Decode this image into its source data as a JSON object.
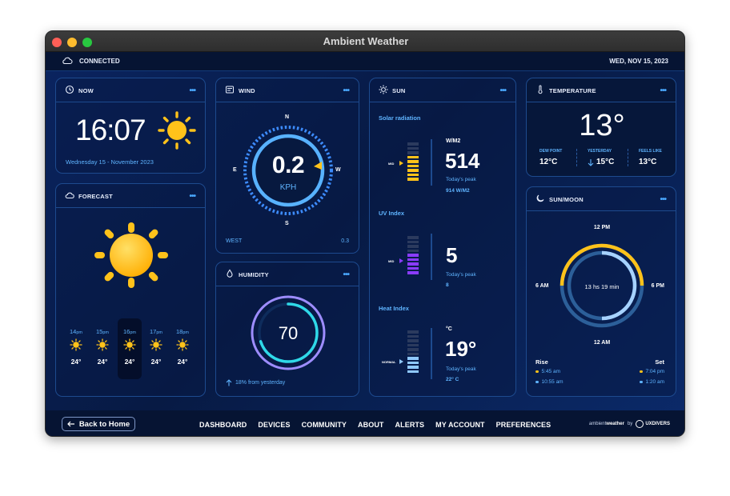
{
  "window": {
    "title": "Ambient Weather"
  },
  "status": {
    "connection": "CONNECTED",
    "date": "WED, NOV 15, 2023"
  },
  "now": {
    "title": "NOW",
    "time": "16:07",
    "date": "Wednesday 15 - November 2023"
  },
  "forecast": {
    "title": "FORECAST",
    "hours": [
      {
        "hour": "14",
        "suffix": "pm",
        "temp": "24°"
      },
      {
        "hour": "15",
        "suffix": "pm",
        "temp": "24°"
      },
      {
        "hour": "16",
        "suffix": "pm",
        "temp": "24°"
      },
      {
        "hour": "17",
        "suffix": "pm",
        "temp": "24°"
      },
      {
        "hour": "18",
        "suffix": "pm",
        "temp": "24°"
      }
    ]
  },
  "wind": {
    "title": "WIND",
    "speed": "0.2",
    "unit": "KPH",
    "compass": {
      "n": "N",
      "e": "E",
      "s": "S",
      "w": "W"
    },
    "direction": "WEST",
    "value": "0.3"
  },
  "humidity": {
    "title": "HUMIDITY",
    "value": "70",
    "level": 0.7,
    "change": "18% from yesterday"
  },
  "sun": {
    "title": "SUN",
    "solar": {
      "label": "Solar radiation",
      "unit": "W/M2",
      "value": "514",
      "peak_label": "Today's peak",
      "peak": "914 W/M2",
      "marker": "MID"
    },
    "uv": {
      "label": "UV Index",
      "value": "5",
      "peak_label": "Today's peak",
      "peak": "8",
      "marker": "MID"
    },
    "heat": {
      "label": "Heat Index",
      "unit": "°C",
      "value": "19°",
      "peak_label": "Today's peak",
      "peak": "22° C",
      "marker": "NORMAL"
    }
  },
  "temperature": {
    "title": "TEMPERATURE",
    "value": "13°",
    "dew_label": "DEW POINT",
    "dew": "12°C",
    "yesterday_label": "YESTERDAY",
    "yesterday": "15°C",
    "feels_label": "FEELS LIKE",
    "feels": "13°C"
  },
  "sunmoon": {
    "title": "SUN/MOON",
    "top": "12 PM",
    "left": "6 AM",
    "right": "6 PM",
    "bottom": "12 AM",
    "center": "13 hs 19 min",
    "rise_label": "Rise",
    "set_label": "Set",
    "rise_sun": "5:45 am",
    "rise_moon": "10:55 am",
    "set_sun": "7:04 pm",
    "set_moon": "1:20 am"
  },
  "nav": {
    "back": "Back to Home",
    "links": [
      "DASHBOARD",
      "DEVICES",
      "COMMUNITY",
      "ABOUT",
      "ALERTS",
      "MY ACCOUNT",
      "PREFERENCES"
    ],
    "brand_prefix": "ambient",
    "brand_suffix": "weather",
    "brand_by": "by",
    "partner": "UXDIVERS"
  },
  "colors": {
    "accent": "#4aa8ff",
    "sun": "#ffc21a",
    "uv": "#8a3cff",
    "cyan": "#2fd9e8",
    "background": "#071a44"
  }
}
